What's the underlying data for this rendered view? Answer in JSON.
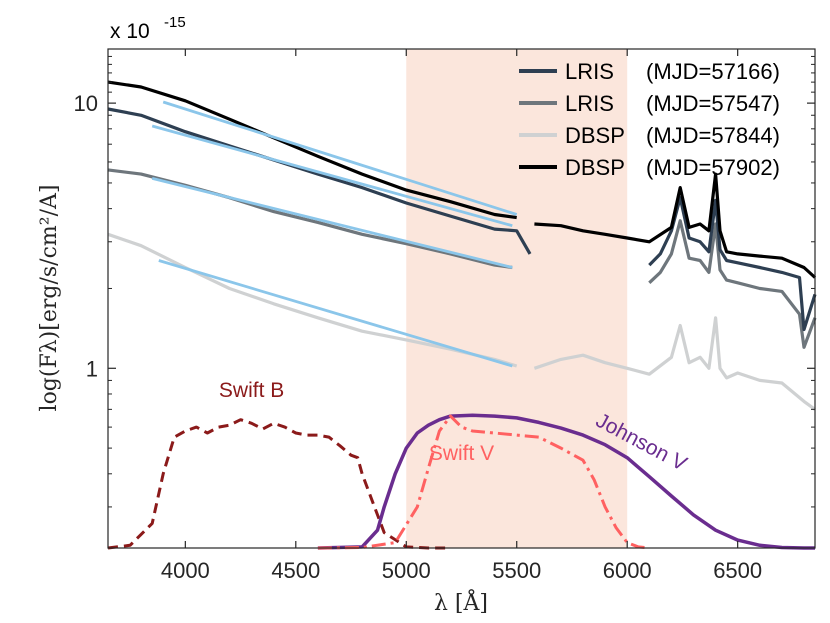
{
  "chart_data": {
    "type": "line",
    "title": "",
    "scale_label": {
      "base": "x 10",
      "exponent": "-15"
    },
    "xlabel": "λ [Å]",
    "ylabel": "log(Fλ)[erg/s/cm²/A]",
    "xlim": [
      3650,
      6850
    ],
    "ylim_log": [
      0.21,
      16.0
    ],
    "y_scale": "log",
    "x_ticks": [
      4000,
      4500,
      5000,
      5500,
      6000,
      6500
    ],
    "x_tick_labels": [
      "4000",
      "4500",
      "5000",
      "5500",
      "6000",
      "6500"
    ],
    "y_ticks": [
      1,
      10
    ],
    "y_tick_labels": [
      "1",
      "10"
    ],
    "shaded_band": {
      "x_start": 5000,
      "x_end": 6000,
      "color": "#fbe6dc"
    },
    "legend": {
      "position": "top-right",
      "entries": [
        {
          "instrument": "LRIS",
          "mjd": "(MJD=57166)",
          "color": "#2e3f52"
        },
        {
          "instrument": "LRIS",
          "mjd": "(MJD=57547)",
          "color": "#6e767c"
        },
        {
          "instrument": "DBSP",
          "mjd": "(MJD=57844)",
          "color": "#cfd1d2"
        },
        {
          "instrument": "DBSP",
          "mjd": "(MJD=57902)",
          "color": "#000000"
        }
      ]
    },
    "series": [
      {
        "name": "DBSP (MJD=57844)",
        "color": "#cfd1d2",
        "segments": [
          {
            "x": [
              3650,
              3800,
              4000,
              4200,
              4400,
              4600,
              4800,
              5000,
              5200,
              5400,
              5500
            ],
            "y": [
              3.2,
              2.9,
              2.4,
              2.0,
              1.75,
              1.55,
              1.38,
              1.28,
              1.18,
              1.08,
              1.02
            ]
          },
          {
            "x": [
              5580,
              5700,
              5800,
              5900,
              6000,
              6100,
              6200,
              6240,
              6280,
              6330,
              6370,
              6400,
              6420,
              6450,
              6500,
              6600,
              6700,
              6800,
              6850
            ],
            "y": [
              1.0,
              1.08,
              1.12,
              1.05,
              1.0,
              0.95,
              1.1,
              1.45,
              1.05,
              1.1,
              1.0,
              1.55,
              1.0,
              0.92,
              0.96,
              0.9,
              0.88,
              0.75,
              0.7
            ]
          }
        ]
      },
      {
        "name": "LRIS (MJD=57547)",
        "color": "#6e767c",
        "segments": [
          {
            "x": [
              3650,
              3800,
              4000,
              4200,
              4400,
              4600,
              4800,
              5000,
              5200,
              5400,
              5480
            ],
            "y": [
              5.6,
              5.4,
              4.9,
              4.4,
              3.9,
              3.55,
              3.2,
              2.95,
              2.7,
              2.45,
              2.4
            ]
          },
          {
            "x": [
              6100,
              6150,
              6200,
              6240,
              6280,
              6330,
              6370,
              6400,
              6420,
              6450,
              6500,
              6600,
              6700,
              6780,
              6800,
              6850
            ],
            "y": [
              2.1,
              2.3,
              2.7,
              3.6,
              2.6,
              2.55,
              2.3,
              3.5,
              2.35,
              2.15,
              2.1,
              2.0,
              1.95,
              1.6,
              1.2,
              1.55
            ]
          }
        ]
      },
      {
        "name": "LRIS (MJD=57166)",
        "color": "#2e3f52",
        "segments": [
          {
            "x": [
              3650,
              3800,
              4000,
              4200,
              4400,
              4600,
              4800,
              5000,
              5200,
              5400,
              5500,
              5560
            ],
            "y": [
              9.5,
              9.0,
              7.8,
              6.9,
              6.1,
              5.4,
              4.8,
              4.2,
              3.75,
              3.35,
              3.3,
              2.7
            ]
          },
          {
            "x": [
              6100,
              6150,
              6200,
              6240,
              6280,
              6330,
              6370,
              6400,
              6420,
              6450,
              6500,
              6600,
              6700,
              6780,
              6800,
              6850
            ],
            "y": [
              2.45,
              2.7,
              3.3,
              4.4,
              3.1,
              3.0,
              2.75,
              4.3,
              2.8,
              2.55,
              2.5,
              2.4,
              2.3,
              2.2,
              1.4,
              1.9
            ]
          }
        ]
      },
      {
        "name": "DBSP (MJD=57902)",
        "color": "#000000",
        "segments": [
          {
            "x": [
              3650,
              3800,
              4000,
              4200,
              4400,
              4600,
              4800,
              5000,
              5200,
              5400,
              5500
            ],
            "y": [
              12.0,
              11.5,
              10.2,
              8.7,
              7.4,
              6.3,
              5.4,
              4.7,
              4.25,
              3.8,
              3.7
            ]
          },
          {
            "x": [
              5580,
              5700,
              5800,
              5900,
              6000,
              6100,
              6200,
              6240,
              6280,
              6330,
              6370,
              6400,
              6420,
              6450,
              6500,
              6600,
              6700,
              6800,
              6850
            ],
            "y": [
              3.5,
              3.45,
              3.3,
              3.2,
              3.1,
              3.0,
              3.4,
              4.8,
              3.4,
              3.5,
              3.3,
              5.4,
              3.3,
              2.75,
              2.7,
              2.65,
              2.6,
              2.4,
              2.2
            ]
          }
        ]
      }
    ],
    "power_law_fits": [
      {
        "color": "#8bc6ea",
        "x": [
          3900,
          5500
        ],
        "y": [
          10.1,
          3.8
        ]
      },
      {
        "color": "#8bc6ea",
        "x": [
          3850,
          5480
        ],
        "y": [
          8.2,
          3.45
        ]
      },
      {
        "color": "#8bc6ea",
        "x": [
          3850,
          5480
        ],
        "y": [
          5.2,
          2.4
        ]
      },
      {
        "color": "#8bc6ea",
        "x": [
          3880,
          5480
        ],
        "y": [
          2.55,
          1.02
        ]
      }
    ],
    "filter_curves": [
      {
        "name": "Swift B",
        "label": "Swift B",
        "color": "#8b1a1a",
        "style": "dashed",
        "x": [
          3650,
          3750,
          3850,
          3900,
          3950,
          4000,
          4050,
          4100,
          4150,
          4200,
          4250,
          4300,
          4350,
          4400,
          4450,
          4500,
          4550,
          4600,
          4650,
          4700,
          4750,
          4780,
          4800,
          4850,
          4900,
          5000,
          5100,
          5200
        ],
        "y": [
          0.21,
          0.215,
          0.26,
          0.4,
          0.55,
          0.58,
          0.6,
          0.57,
          0.6,
          0.61,
          0.64,
          0.62,
          0.59,
          0.62,
          0.6,
          0.57,
          0.56,
          0.56,
          0.55,
          0.51,
          0.47,
          0.46,
          0.4,
          0.31,
          0.24,
          0.212,
          0.21,
          0.21
        ]
      },
      {
        "name": "Johnson V",
        "label": "Johnson V",
        "color": "#6a2d8f",
        "style": "solid",
        "x": [
          4600,
          4800,
          4870,
          4900,
          4950,
          5000,
          5050,
          5100,
          5150,
          5200,
          5300,
          5400,
          5500,
          5600,
          5700,
          5800,
          5900,
          6000,
          6100,
          6200,
          6300,
          6400,
          6500,
          6600,
          6700,
          6800,
          6850
        ],
        "y": [
          0.21,
          0.212,
          0.245,
          0.3,
          0.4,
          0.5,
          0.57,
          0.61,
          0.64,
          0.66,
          0.665,
          0.66,
          0.65,
          0.625,
          0.595,
          0.56,
          0.515,
          0.46,
          0.39,
          0.33,
          0.28,
          0.245,
          0.225,
          0.215,
          0.211,
          0.21,
          0.21
        ]
      },
      {
        "name": "Swift V",
        "label": "Swift V",
        "color": "#ff6161",
        "style": "dashdot",
        "x": [
          4600,
          4800,
          4950,
          5050,
          5100,
          5150,
          5200,
          5250,
          5300,
          5400,
          5500,
          5600,
          5700,
          5800,
          5850,
          5900,
          5950,
          6000,
          6050,
          6100
        ],
        "y": [
          0.21,
          0.211,
          0.22,
          0.3,
          0.42,
          0.58,
          0.66,
          0.6,
          0.58,
          0.57,
          0.56,
          0.55,
          0.5,
          0.45,
          0.38,
          0.3,
          0.25,
          0.22,
          0.212,
          0.21
        ]
      }
    ]
  }
}
